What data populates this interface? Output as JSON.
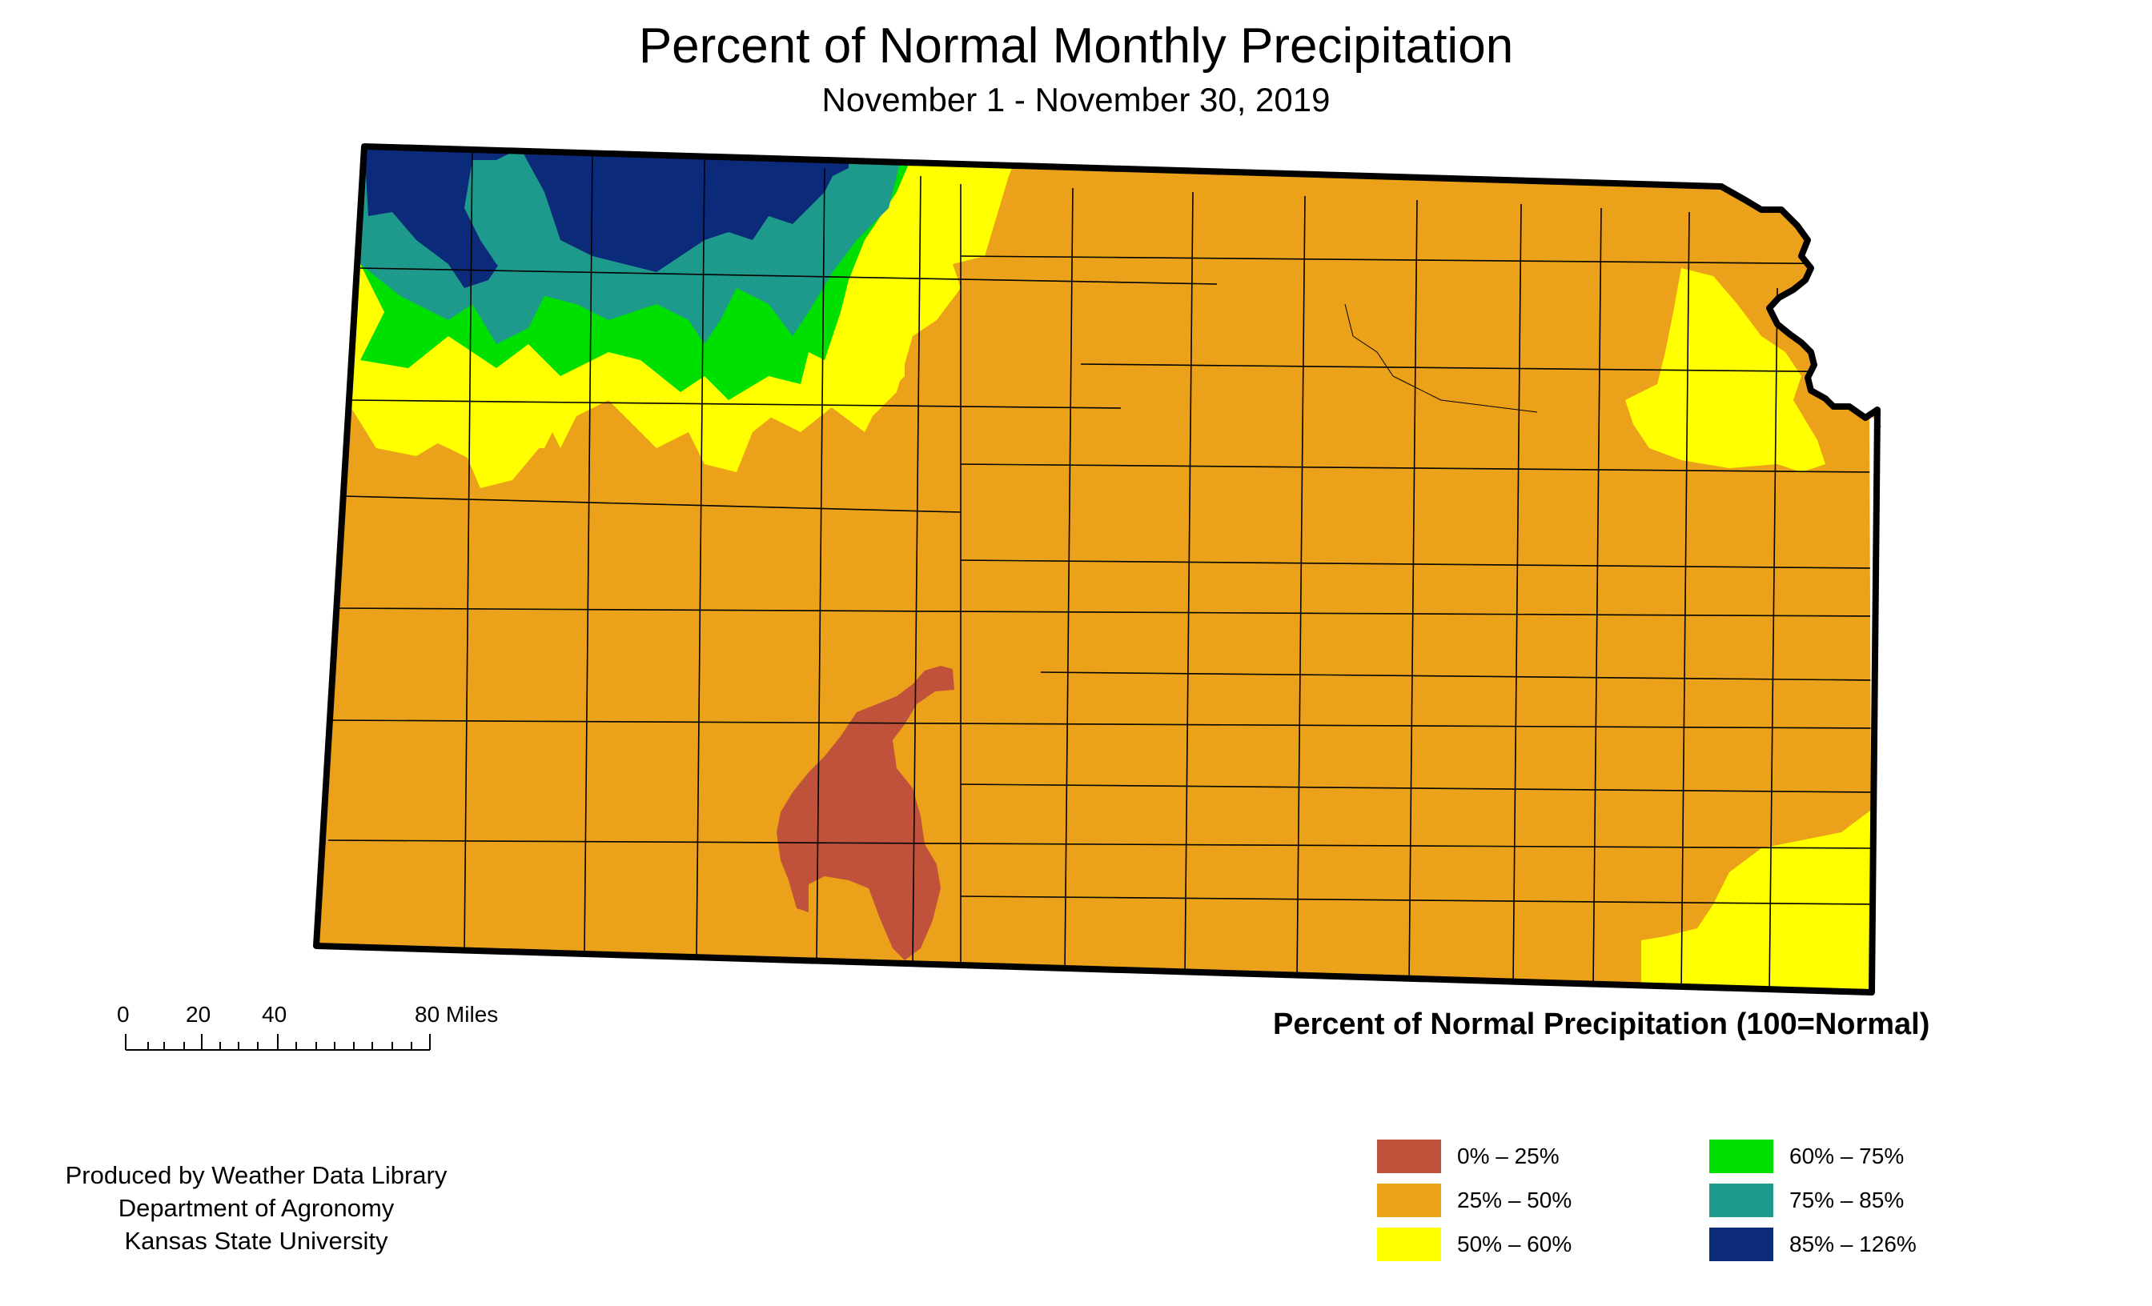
{
  "title": "Percent of Normal Monthly Precipitation",
  "subtitle": "November 1 - November 30, 2019",
  "scale_bar": {
    "ticks": [
      "0",
      "20",
      "40",
      "80 Miles"
    ]
  },
  "legend": {
    "title": "Percent of Normal Precipitation (100=Normal)",
    "items": [
      {
        "label": "0% – 25%",
        "color": "#c0513b"
      },
      {
        "label": "25% – 50%",
        "color": "#eba21a"
      },
      {
        "label": "50% – 60%",
        "color": "#ffff00"
      },
      {
        "label": "60% – 75%",
        "color": "#00e000"
      },
      {
        "label": "75% – 85%",
        "color": "#1e9a8c"
      },
      {
        "label": "85% – 126%",
        "color": "#0c2a7a"
      }
    ]
  },
  "credits": {
    "line1": "Produced by Weather Data Library",
    "line2": "Department of Agronomy",
    "line3": "Kansas State University"
  }
}
